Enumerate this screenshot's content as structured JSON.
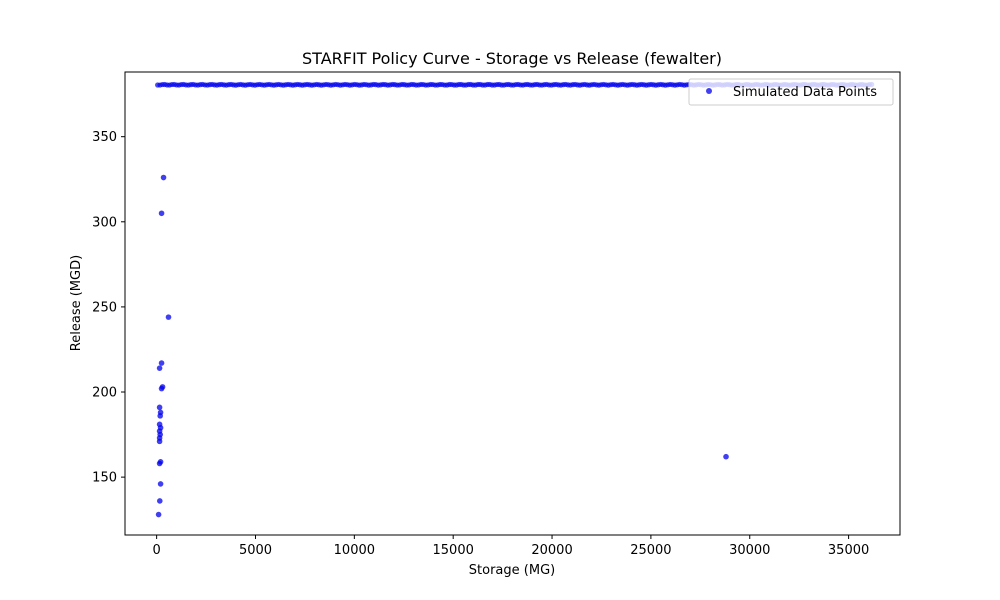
{
  "chart_data": {
    "type": "scatter",
    "title": "STARFIT Policy Curve - Storage vs Release (fewalter)",
    "xlabel": "Storage (MG)",
    "ylabel": "Release (MGD)",
    "xlim": [
      -1600,
      37600
    ],
    "ylim": [
      116,
      388
    ],
    "xticks": [
      0,
      5000,
      10000,
      15000,
      20000,
      25000,
      30000,
      35000
    ],
    "xtick_labels": [
      "0",
      "5000",
      "10000",
      "15000",
      "20000",
      "25000",
      "30000",
      "35000"
    ],
    "yticks": [
      150,
      200,
      250,
      300,
      350
    ],
    "ytick_labels": [
      "150",
      "200",
      "250",
      "300",
      "350"
    ],
    "grid": false,
    "legend_position": "top-right",
    "series": [
      {
        "name": "Simulated Data Points",
        "color": "#0000ee",
        "marker": "circle",
        "x": [
          28800,
          350,
          250,
          600,
          250,
          150,
          300,
          250,
          150,
          200,
          180,
          150,
          200,
          150,
          180,
          150,
          150,
          200,
          150,
          200,
          160,
          100
        ],
        "y": [
          162,
          326,
          305,
          244,
          217,
          214,
          203,
          202,
          191,
          188,
          186,
          181,
          179,
          177,
          175,
          173,
          171,
          159,
          158,
          146,
          136,
          128
        ]
      }
    ],
    "dense_band": {
      "series": "Simulated Data Points",
      "y": 380.5,
      "x_range": [
        50,
        36200
      ]
    }
  }
}
